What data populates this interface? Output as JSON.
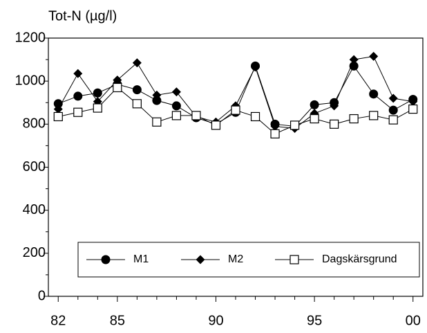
{
  "chart_data": {
    "type": "line",
    "ylabel": "Tot-N (µg/l)",
    "categories": [
      "82",
      null,
      null,
      "85",
      null,
      null,
      null,
      null,
      "90",
      null,
      null,
      null,
      null,
      "95",
      null,
      null,
      null,
      null,
      "00"
    ],
    "series": [
      {
        "name": "M1",
        "marker": "circle",
        "color": "#000000",
        "values": [
          895,
          930,
          945,
          985,
          960,
          910,
          885,
          830,
          800,
          855,
          1070,
          800,
          790,
          890,
          900,
          1070,
          940,
          865,
          915
        ]
      },
      {
        "name": "M2",
        "marker": "diamond",
        "color": "#000000",
        "values": [
          870,
          1035,
          905,
          1005,
          1085,
          935,
          950,
          835,
          810,
          885,
          1065,
          790,
          780,
          850,
          885,
          1100,
          1115,
          920,
          905
        ]
      },
      {
        "name": "Dagskärsgrund",
        "marker": "square",
        "color": "#000000",
        "values": [
          835,
          855,
          875,
          970,
          895,
          810,
          840,
          840,
          795,
          865,
          835,
          755,
          795,
          825,
          800,
          825,
          840,
          820,
          870
        ]
      }
    ],
    "ylim": [
      0,
      1200
    ],
    "yticks": [
      0,
      200,
      400,
      600,
      800,
      1000,
      1200
    ],
    "grid": false,
    "legend": "bottom"
  }
}
